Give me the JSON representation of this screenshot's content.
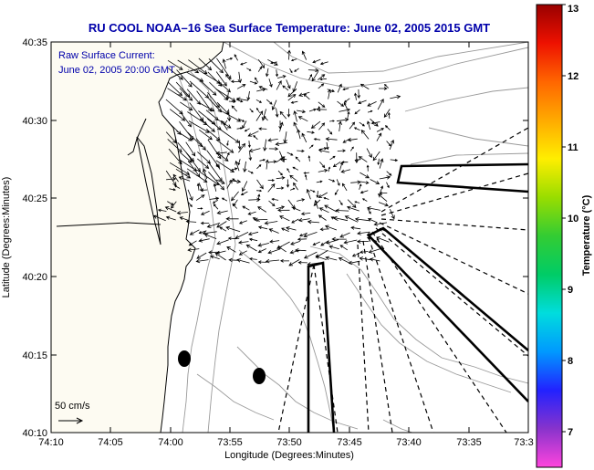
{
  "title": "RU COOL  NOAA–16  Sea Surface Temperature:  June 02, 2005 2015 GMT",
  "legend": {
    "line1": "Raw Surface Current:",
    "line2": "June 02, 2005 20:00 GMT"
  },
  "scale_label": "50 cm/s",
  "axes": {
    "xlabel": "Longitude (Degrees:Minutes)",
    "ylabel": "Latitude (Degrees:Minutes)",
    "xticks": [
      "74:10",
      "74:05",
      "74:00",
      "73:55",
      "73:50",
      "73:45",
      "73:40",
      "73:35",
      "73:3"
    ],
    "yticks": [
      "40:10",
      "40:15",
      "40:20",
      "40:25",
      "40:30",
      "40:35"
    ]
  },
  "colorbar": {
    "label": "Temperature (°C)",
    "ticks": [
      "7",
      "8",
      "9",
      "10",
      "11",
      "12",
      "13"
    ],
    "min": 6.5,
    "max": 13,
    "colors": [
      "#ff44dd",
      "#8833cc",
      "#2222ff",
      "#0099ff",
      "#00dddd",
      "#00cc66",
      "#33cc33",
      "#99dd00",
      "#ffee00",
      "#ffaa00",
      "#ff6600",
      "#ee1100",
      "#990000"
    ]
  },
  "colors": {
    "title": "#0000aa",
    "legend_text": "#0000aa",
    "land": "#fdfbf2",
    "contour": "#999999"
  }
}
